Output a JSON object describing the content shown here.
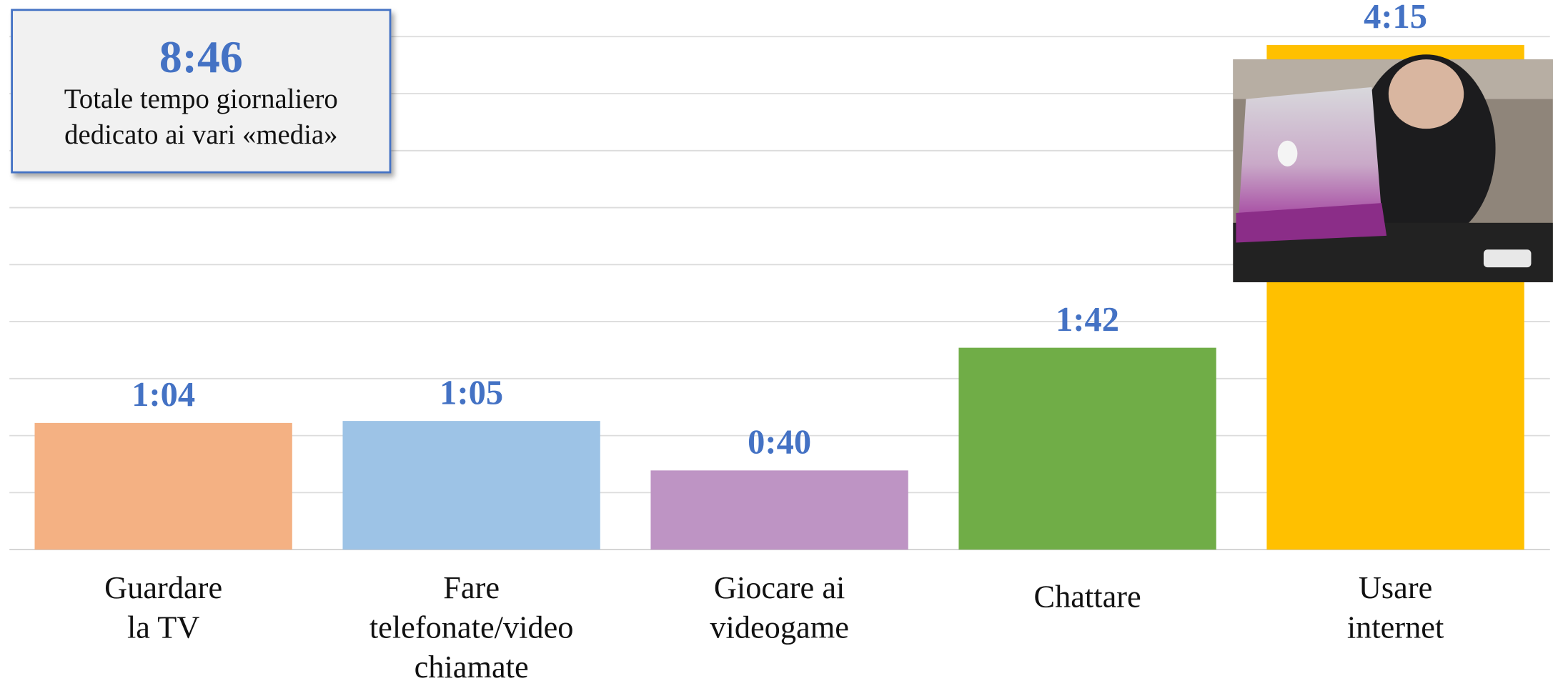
{
  "chart_data": {
    "type": "bar",
    "annotation": {
      "value_text": "8:46",
      "lines": [
        "Totale tempo giornaliero",
        "dedicato ai vari «media»"
      ]
    },
    "categories": [
      "Guardare\nla TV",
      "Fare\ntelefonate/video\nchiamate",
      "Giocare ai\nvideogame",
      "Chattare",
      "Usare\ninternet"
    ],
    "values": [
      64,
      65,
      40,
      102,
      255
    ],
    "value_labels": [
      "1:04",
      "1:05",
      "0:40",
      "1:42",
      "4:15"
    ],
    "colors": [
      "#F4B183",
      "#9DC3E6",
      "#BE94C4",
      "#70AD47",
      "#FFC000"
    ],
    "label_color": "#4472C4",
    "ylim": [
      0,
      259.2
    ],
    "yticks": [
      0,
      28.8,
      57.6,
      86.4,
      115.2,
      144,
      172.8,
      201.6,
      230.4,
      259.2
    ],
    "grid": true
  }
}
